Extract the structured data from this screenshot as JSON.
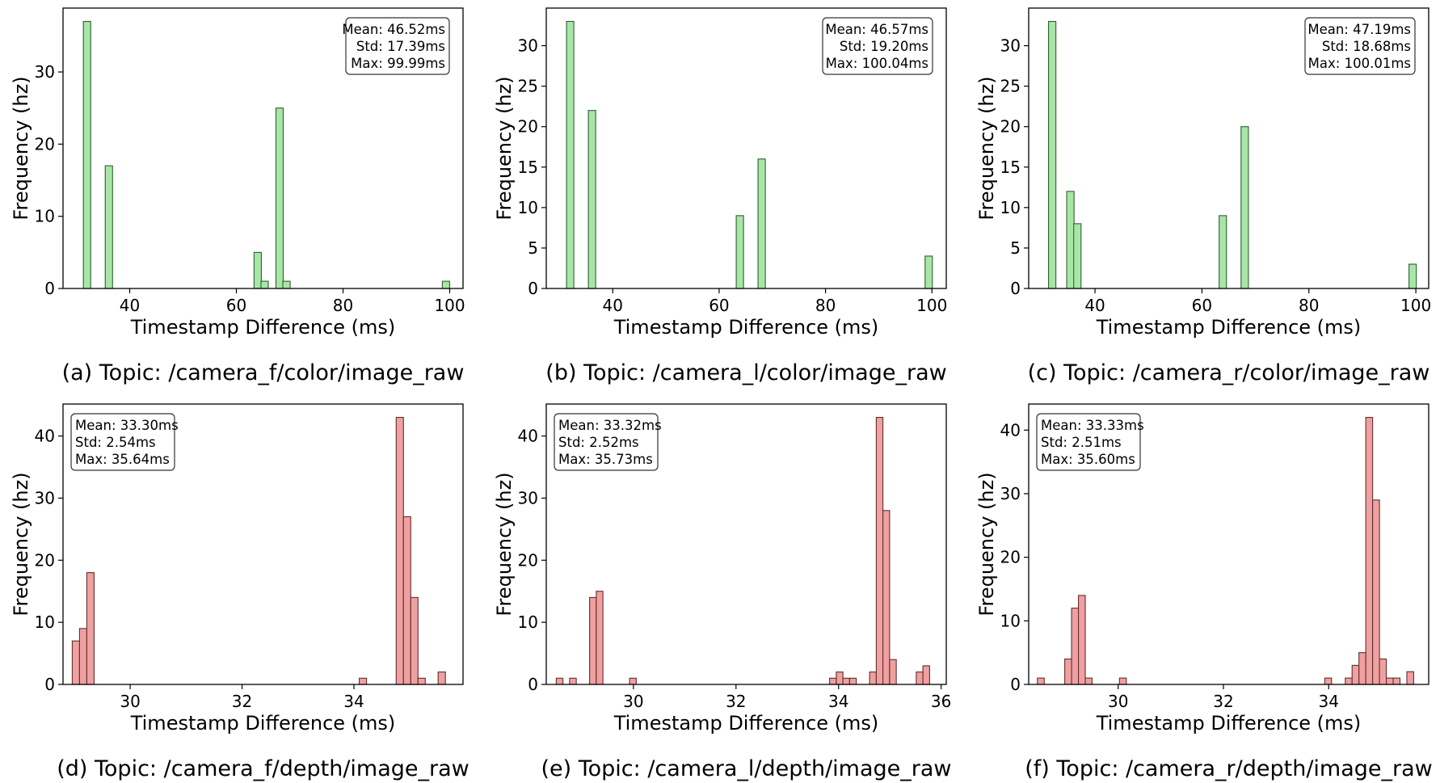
{
  "figure": {
    "panels": [
      {
        "caption": "(a) Topic: /camera_f/color/image_raw"
      },
      {
        "caption": "(b) Topic: /camera_l/color/image_raw"
      },
      {
        "caption": "(c) Topic: /camera_r/color/image_raw"
      },
      {
        "caption": "(d) Topic: /camera_f/depth/image_raw"
      },
      {
        "caption": "(e) Topic: /camera_l/depth/image_raw"
      },
      {
        "caption": "(f) Topic: /camera_r/depth/image_raw"
      }
    ]
  },
  "chart_data": [
    {
      "type": "bar",
      "title": "",
      "xlabel": "Timestamp Difference (ms)",
      "ylabel": "Frequency (hz)",
      "xlim": [
        27.5,
        102.5
      ],
      "ylim": [
        0,
        38.85
      ],
      "xticks": [
        40,
        60,
        80,
        100
      ],
      "yticks": [
        0,
        10,
        20,
        30
      ],
      "bar_width": 1.37,
      "x": [
        32.0,
        36.1,
        64.0,
        65.3,
        68.1,
        69.4,
        99.3
      ],
      "values": [
        37,
        17,
        5,
        1,
        25,
        1,
        1
      ],
      "color": "#a8e6a8",
      "edgecolor": "#2f5f2f",
      "stats_align": "right",
      "legend_location": "top-right",
      "stats": [
        "Mean: 46.52ms",
        "Std: 17.39ms",
        "Max: 99.99ms"
      ]
    },
    {
      "type": "bar",
      "title": "",
      "xlabel": "Timestamp Difference (ms)",
      "ylabel": "Frequency (hz)",
      "xlim": [
        27.5,
        102.7
      ],
      "ylim": [
        0,
        34.65
      ],
      "xticks": [
        40,
        60,
        80,
        100
      ],
      "yticks": [
        0,
        5,
        10,
        15,
        20,
        25,
        30
      ],
      "bar_width": 1.37,
      "x": [
        32.0,
        36.1,
        63.9,
        68.0,
        99.4
      ],
      "values": [
        33,
        22,
        9,
        16,
        4
      ],
      "color": "#a8e6a8",
      "edgecolor": "#2f5f2f",
      "stats_align": "right",
      "legend_location": "top-right",
      "stats": [
        "Mean: 46.57ms",
        "Std: 19.20ms",
        "Max: 100.04ms"
      ]
    },
    {
      "type": "bar",
      "title": "",
      "xlabel": "Timestamp Difference (ms)",
      "ylabel": "Frequency (hz)",
      "xlim": [
        27.6,
        102.4
      ],
      "ylim": [
        0,
        34.65
      ],
      "xticks": [
        40,
        60,
        80,
        100
      ],
      "yticks": [
        0,
        5,
        10,
        15,
        20,
        25,
        30
      ],
      "bar_width": 1.37,
      "x": [
        32.0,
        35.4,
        36.7,
        63.9,
        68.0,
        99.4
      ],
      "values": [
        33,
        12,
        8,
        9,
        20,
        3
      ],
      "color": "#a8e6a8",
      "edgecolor": "#2f5f2f",
      "stats_align": "right",
      "legend_location": "top-right",
      "stats": [
        "Mean: 47.19ms",
        "Std: 18.68ms",
        "Max: 100.01ms"
      ]
    },
    {
      "type": "bar",
      "title": "",
      "xlabel": "Timestamp Difference (ms)",
      "ylabel": "Frequency (hz)",
      "xlim": [
        28.8,
        35.95
      ],
      "ylim": [
        0,
        45.15
      ],
      "xticks": [
        30,
        32,
        34
      ],
      "yticks": [
        0,
        10,
        20,
        30,
        40
      ],
      "bar_width": 0.13,
      "x": [
        29.03,
        29.16,
        29.29,
        34.16,
        34.82,
        34.95,
        35.08,
        35.21,
        35.57
      ],
      "values": [
        7,
        9,
        18,
        1,
        43,
        27,
        14,
        1,
        2
      ],
      "color": "#f0a0a0",
      "edgecolor": "#5f2f2f",
      "stats_align": "left",
      "legend_location": "top-left",
      "stats": [
        "Mean: 33.30ms",
        "Std: 2.54ms",
        "Max: 35.64ms"
      ]
    },
    {
      "type": "bar",
      "title": "",
      "xlabel": "Timestamp Difference (ms)",
      "ylabel": "Frequency (hz)",
      "xlim": [
        28.3,
        36.1
      ],
      "ylim": [
        0,
        45.15
      ],
      "xticks": [
        30,
        32,
        34,
        36
      ],
      "yticks": [
        0,
        10,
        20,
        30,
        40
      ],
      "bar_width": 0.13,
      "x": [
        28.56,
        28.82,
        29.21,
        29.34,
        29.99,
        33.89,
        34.02,
        34.15,
        34.28,
        34.67,
        34.8,
        34.93,
        35.06,
        35.58,
        35.71
      ],
      "values": [
        1,
        1,
        14,
        15,
        1,
        1,
        2,
        1,
        1,
        2,
        43,
        28,
        4,
        2,
        3
      ],
      "color": "#f0a0a0",
      "edgecolor": "#5f2f2f",
      "stats_align": "left",
      "legend_location": "top-left",
      "stats": [
        "Mean: 33.32ms",
        "Std: 2.52ms",
        "Max: 35.73ms"
      ]
    },
    {
      "type": "bar",
      "title": "",
      "xlabel": "Timestamp Difference (ms)",
      "ylabel": "Frequency (hz)",
      "xlim": [
        28.3,
        35.9
      ],
      "ylim": [
        0,
        44.1
      ],
      "xticks": [
        30,
        32,
        34
      ],
      "yticks": [
        0,
        10,
        20,
        30,
        40
      ],
      "bar_width": 0.13,
      "x": [
        28.53,
        29.05,
        29.18,
        29.31,
        29.44,
        30.09,
        33.99,
        34.38,
        34.51,
        34.64,
        34.77,
        34.9,
        35.03,
        35.16,
        35.29,
        35.55
      ],
      "values": [
        1,
        4,
        12,
        14,
        1,
        1,
        1,
        1,
        3,
        5,
        42,
        29,
        4,
        1,
        1,
        2
      ],
      "color": "#f0a0a0",
      "edgecolor": "#5f2f2f",
      "stats_align": "left",
      "legend_location": "top-left",
      "stats": [
        "Mean: 33.33ms",
        "Std: 2.51ms",
        "Max: 35.60ms"
      ]
    }
  ]
}
